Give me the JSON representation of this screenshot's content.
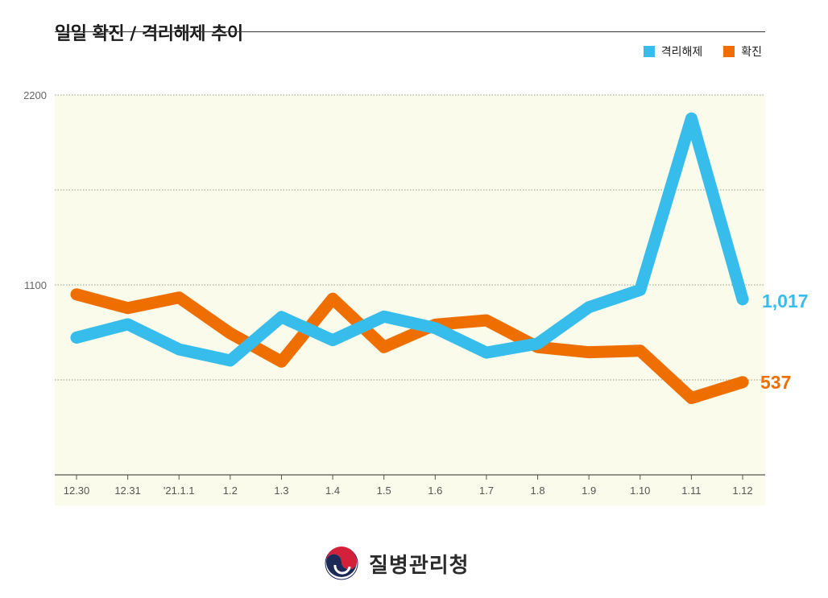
{
  "title": "일일 확진 / 격리해제 추이",
  "legend": [
    {
      "label": "격리해제",
      "color": "#36BDEB"
    },
    {
      "label": "확진",
      "color": "#EE6F00"
    }
  ],
  "end_labels": {
    "release": "1,017",
    "confirmed": "537"
  },
  "logo_text": "질병관리청",
  "chart_data": {
    "type": "line",
    "categories": [
      "12.30",
      "12.31",
      "'21.1.1",
      "1.2",
      "1.3",
      "1.4",
      "1.5",
      "1.6",
      "1.7",
      "1.8",
      "1.9",
      "1.10",
      "1.11",
      "1.12"
    ],
    "series": [
      {
        "name": "격리해제",
        "color": "#36BDEB",
        "values": [
          795,
          872,
          727,
          662,
          914,
          780,
          917,
          850,
          708,
          760,
          971,
          1071,
          2064,
          1017
        ]
      },
      {
        "name": "확진",
        "color": "#EE6F00",
        "values": [
          1045,
          966,
          1027,
          820,
          656,
          1020,
          740,
          870,
          895,
          740,
          710,
          719,
          445,
          537
        ]
      }
    ],
    "ylim": [
      0,
      2200
    ],
    "yticks": [
      1100,
      2200
    ],
    "grid": true,
    "legend_position": "top-right"
  }
}
